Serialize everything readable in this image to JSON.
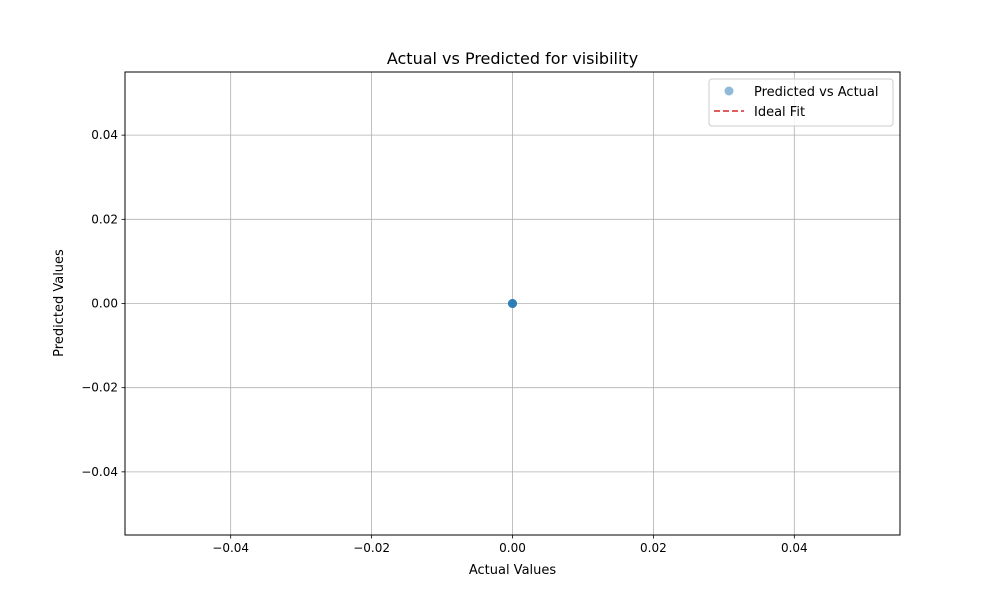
{
  "chart_data": {
    "type": "scatter",
    "title": "Actual vs Predicted for visibility",
    "xlabel": "Actual Values",
    "ylabel": "Predicted Values",
    "xlim": [
      -0.055,
      0.055
    ],
    "ylim": [
      -0.055,
      0.055
    ],
    "x_ticks": [
      -0.04,
      -0.02,
      0.0,
      0.02,
      0.04
    ],
    "y_ticks": [
      -0.04,
      -0.02,
      0.0,
      0.02,
      0.04
    ],
    "x_tick_labels": [
      "−0.04",
      "−0.02",
      "0.00",
      "0.02",
      "0.04"
    ],
    "y_tick_labels": [
      "−0.04",
      "−0.02",
      "0.00",
      "0.02",
      "0.04"
    ],
    "grid": true,
    "legend_position": "top-right",
    "series": [
      {
        "name": "Predicted vs Actual",
        "kind": "scatter",
        "color": "#1f77b4",
        "alpha": 0.5,
        "points": [
          [
            0.0,
            0.0
          ],
          [
            0.0,
            0.0
          ],
          [
            0.0,
            0.0
          ],
          [
            0.0,
            0.0
          ]
        ]
      },
      {
        "name": "Ideal Fit",
        "kind": "line",
        "color": "#d62728",
        "dashed": true,
        "points": [
          [
            0.0,
            0.0
          ],
          [
            0.0,
            0.0
          ]
        ]
      }
    ]
  }
}
